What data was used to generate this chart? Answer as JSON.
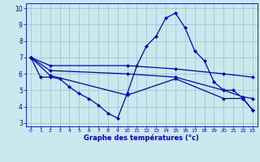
{
  "line1_x": [
    0,
    1,
    2,
    3,
    4,
    5,
    6,
    7,
    8,
    9,
    10,
    11,
    12,
    13,
    14,
    15,
    16,
    17,
    18,
    19,
    20,
    21,
    22,
    23
  ],
  "line1_y": [
    7.0,
    5.8,
    5.8,
    5.7,
    5.2,
    4.8,
    4.5,
    4.1,
    3.6,
    3.3,
    4.8,
    6.5,
    7.7,
    8.3,
    9.4,
    9.7,
    8.8,
    7.4,
    6.8,
    5.5,
    5.0,
    5.0,
    4.5,
    3.8
  ],
  "line2_x": [
    0,
    2,
    10,
    15,
    20,
    23
  ],
  "line2_y": [
    7.0,
    6.5,
    6.5,
    6.3,
    6.0,
    5.8
  ],
  "line3_x": [
    0,
    2,
    10,
    15,
    20,
    22,
    23
  ],
  "line3_y": [
    7.0,
    6.2,
    6.0,
    5.8,
    5.0,
    4.6,
    4.5
  ],
  "line4_x": [
    0,
    2,
    10,
    15,
    20,
    22,
    23
  ],
  "line4_y": [
    7.0,
    5.9,
    4.7,
    5.7,
    4.5,
    4.5,
    3.8
  ],
  "xlabel": "Graphe des températures (°c)",
  "xlim": [
    -0.5,
    23.5
  ],
  "ylim": [
    2.8,
    10.3
  ],
  "yticks": [
    3,
    4,
    5,
    6,
    7,
    8,
    9,
    10
  ],
  "xticks": [
    0,
    1,
    2,
    3,
    4,
    5,
    6,
    7,
    8,
    9,
    10,
    11,
    12,
    13,
    14,
    15,
    16,
    17,
    18,
    19,
    20,
    21,
    22,
    23
  ],
  "line_color": "#0000cc",
  "bg_color": "#cce8ef",
  "grid_color": "#9bbfcc",
  "xlabel_color": "#0000cc",
  "spine_color": "#0000cc"
}
